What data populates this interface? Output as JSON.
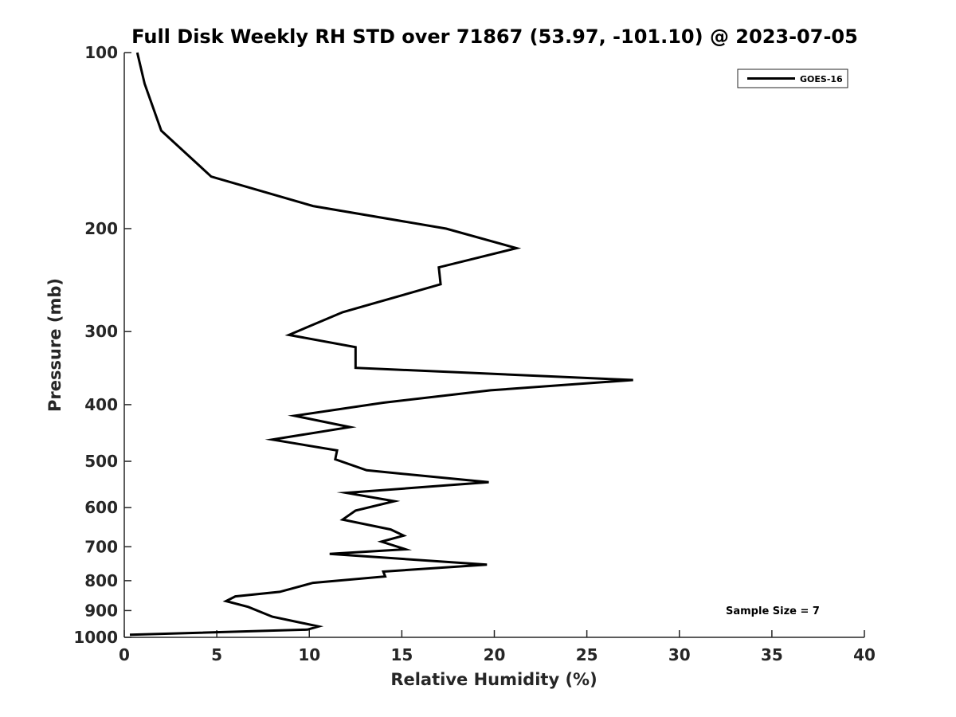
{
  "chart_data": {
    "type": "line",
    "title": "Full Disk Weekly RH STD over 71867 (53.97, -101.10) @ 2023-07-05",
    "xlabel": "Relative Humidity (%)",
    "ylabel": "Pressure (mb)",
    "xlim": [
      0,
      40
    ],
    "ylim": [
      100,
      1000
    ],
    "yscale": "log",
    "y_inverted": true,
    "grid": false,
    "legend_position": "top-right",
    "x_ticks": [
      0,
      5,
      10,
      15,
      20,
      25,
      30,
      35,
      40
    ],
    "x_tick_labels": [
      "0",
      "5",
      "10",
      "15",
      "20",
      "25",
      "30",
      "35",
      "40"
    ],
    "y_ticks": [
      100,
      200,
      300,
      400,
      500,
      600,
      700,
      800,
      900,
      1000
    ],
    "y_tick_labels": [
      "100",
      "200",
      "300",
      "400",
      "500",
      "600",
      "700",
      "800",
      "900",
      "1000"
    ],
    "series": [
      {
        "name": "GOES-16",
        "color": "#000000",
        "x": [
          0.7,
          1.1,
          2.0,
          4.7,
          10.2,
          17.4,
          21.2,
          17.0,
          17.1,
          11.8,
          8.9,
          12.5,
          12.5,
          27.5,
          19.8,
          14.0,
          9.2,
          12.2,
          8.0,
          11.5,
          11.4,
          13.1,
          19.7,
          12.0,
          14.6,
          12.5,
          11.8,
          14.4,
          15.1,
          13.9,
          15.2,
          11.1,
          19.6,
          14.0,
          14.1,
          10.2,
          8.4,
          6.0,
          5.5,
          6.7,
          8.0,
          10.5,
          9.9,
          0.3
        ],
        "y": [
          100,
          113,
          136,
          163,
          183,
          200,
          216,
          233,
          249,
          278,
          304,
          319,
          346,
          363,
          378,
          397,
          418,
          437,
          459,
          479,
          496,
          518,
          543,
          566,
          585,
          607,
          629,
          654,
          670,
          686,
          707,
          720,
          751,
          772,
          787,
          807,
          836,
          851,
          867,
          887,
          922,
          958,
          970,
          990
        ]
      }
    ],
    "annotations": [
      "Sample Size = 7"
    ]
  }
}
